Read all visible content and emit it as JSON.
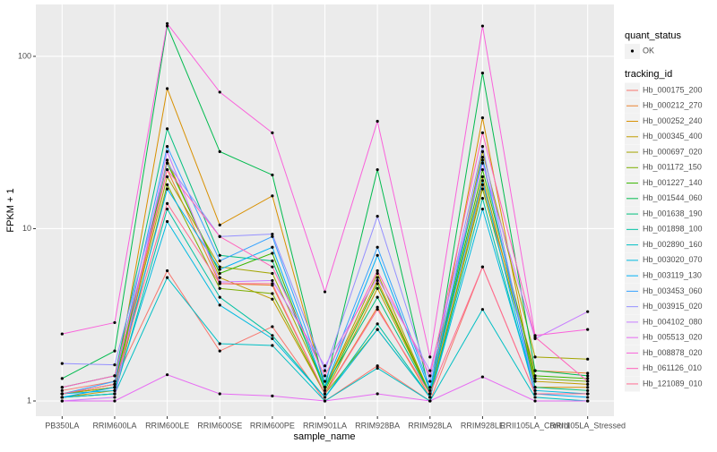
{
  "chart_data": {
    "type": "line",
    "x_label": "sample_name",
    "y_label": "FPKM + 1",
    "log_scale": true,
    "grid": true,
    "categories": [
      "PB350LA",
      "RRIM600LA",
      "RRIM600LE",
      "RRIM600SE",
      "RRIM600PE",
      "RRIM901LA",
      "RRIM928BA",
      "RRIM928LA",
      "RRIM928LE",
      "RRII105LA_Control",
      "RRII105LA_Stressed"
    ],
    "ylim": [
      0.816,
      200
    ],
    "yticks": [
      1,
      10,
      100
    ],
    "quant_status": {
      "title": "quant_status",
      "labels": [
        "OK"
      ]
    },
    "legend_title": "tracking_id",
    "series": [
      {
        "name": "Hb_000175_200",
        "color": "#F8766D",
        "values": [
          1.15,
          1.3,
          5.7,
          1.95,
          2.7,
          1.0,
          1.6,
          1.0,
          6.0,
          1.1,
          1.1
        ]
      },
      {
        "name": "Hb_000212_270",
        "color": "#EA8331",
        "values": [
          1.1,
          1.2,
          22,
          4.8,
          4.7,
          1.1,
          3.5,
          1.05,
          18,
          1.5,
          1.45
        ]
      },
      {
        "name": "Hb_000252_240",
        "color": "#D89000",
        "values": [
          1.1,
          1.2,
          65,
          10.5,
          15.5,
          1.2,
          5.0,
          1.1,
          44,
          1.2,
          1.2
        ]
      },
      {
        "name": "Hb_000345_400",
        "color": "#C09B00",
        "values": [
          1.05,
          1.15,
          25,
          5.2,
          3.9,
          1.1,
          4.5,
          1.1,
          20,
          1.3,
          1.25
        ]
      },
      {
        "name": "Hb_000697_020",
        "color": "#A3A500",
        "values": [
          1.1,
          1.2,
          20,
          6.0,
          5.5,
          1.2,
          5.5,
          1.1,
          28,
          1.8,
          1.75
        ]
      },
      {
        "name": "Hb_001172_150",
        "color": "#7CAE00",
        "values": [
          1.05,
          1.1,
          18,
          4.5,
          4.2,
          1.1,
          2.6,
          1.05,
          17,
          1.35,
          1.3
        ]
      },
      {
        "name": "Hb_001227_140",
        "color": "#39B600",
        "values": [
          1.1,
          1.25,
          24,
          5.5,
          7.2,
          1.15,
          4.8,
          1.1,
          22,
          1.4,
          1.35
        ]
      },
      {
        "name": "Hb_001544_060",
        "color": "#00BB4E",
        "values": [
          1.35,
          1.95,
          150,
          28,
          20.5,
          1.2,
          22,
          1.1,
          80,
          1.5,
          1.4
        ]
      },
      {
        "name": "Hb_001638_190",
        "color": "#00BF7D",
        "values": [
          1.2,
          1.4,
          38,
          7.0,
          6.5,
          1.2,
          4.0,
          1.1,
          25,
          1.2,
          1.15
        ]
      },
      {
        "name": "Hb_001898_100",
        "color": "#00C1A3",
        "values": [
          1.05,
          1.1,
          13,
          4.0,
          2.4,
          1.05,
          2.8,
          1.05,
          15,
          1.1,
          1.1
        ]
      },
      {
        "name": "Hb_002890_160",
        "color": "#00BFC4",
        "values": [
          1.05,
          1.1,
          5.2,
          2.15,
          2.1,
          1.0,
          1.55,
          1.0,
          3.4,
          1.05,
          1.0
        ]
      },
      {
        "name": "Hb_003020_070",
        "color": "#00BAE0",
        "values": [
          1.1,
          1.15,
          11,
          3.6,
          2.3,
          1.05,
          2.6,
          1.05,
          13,
          1.15,
          1.1
        ]
      },
      {
        "name": "Hb_003119_130",
        "color": "#00B0F6",
        "values": [
          1.05,
          1.2,
          17,
          5.8,
          7.8,
          1.2,
          7.0,
          1.15,
          19,
          1.1,
          1.05
        ]
      },
      {
        "name": "Hb_003453_060",
        "color": "#35A2FF",
        "values": [
          1.1,
          1.3,
          30,
          6.5,
          9.0,
          1.3,
          7.8,
          1.2,
          26,
          1.1,
          1.1
        ]
      },
      {
        "name": "Hb_003915_020",
        "color": "#9590FF",
        "values": [
          1.65,
          1.62,
          24,
          9.0,
          9.3,
          1.5,
          11.8,
          1.3,
          30,
          1.1,
          1.1
        ]
      },
      {
        "name": "Hb_004102_080",
        "color": "#C77CFF",
        "values": [
          1.0,
          1.05,
          28,
          4.9,
          5.0,
          1.6,
          5.2,
          1.5,
          24,
          2.3,
          3.3
        ]
      },
      {
        "name": "Hb_005513_020",
        "color": "#E76BF3",
        "values": [
          1.0,
          1.0,
          1.42,
          1.1,
          1.07,
          1.0,
          1.1,
          1.0,
          1.38,
          1.0,
          1.0
        ]
      },
      {
        "name": "Hb_008878_020",
        "color": "#FA62DB",
        "values": [
          2.45,
          2.85,
          155,
          62,
          36,
          4.3,
          42,
          1.8,
          150,
          2.4,
          2.6
        ]
      },
      {
        "name": "Hb_061126_010",
        "color": "#FF62BC",
        "values": [
          1.2,
          1.4,
          22,
          9.0,
          6.0,
          1.4,
          5.7,
          1.4,
          36,
          2.35,
          1.3
        ]
      },
      {
        "name": "Hb_121089_010",
        "color": "#FF6C91",
        "values": [
          1.1,
          1.25,
          14,
          4.8,
          4.8,
          1.1,
          3.4,
          1.1,
          6.0,
          1.1,
          1.1
        ]
      }
    ]
  }
}
